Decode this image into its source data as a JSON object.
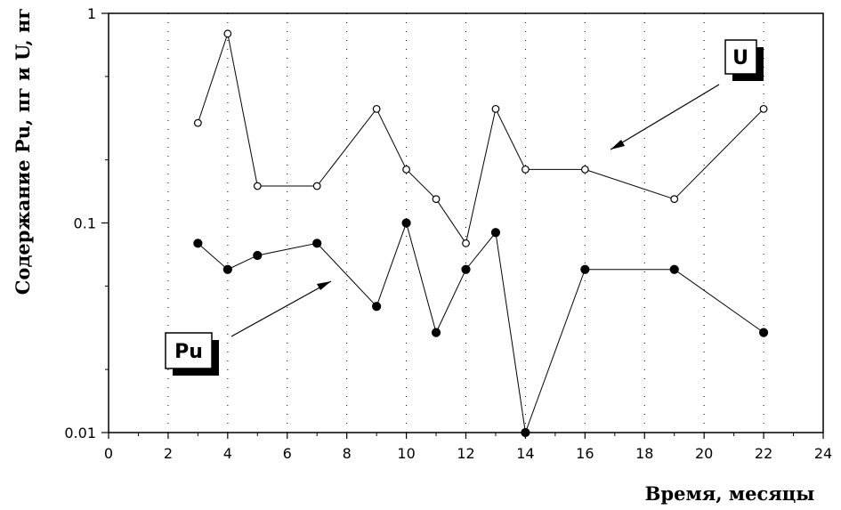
{
  "chart_data": {
    "type": "scatter",
    "title": "",
    "xlabel": "Время,  месяцы",
    "ylabel": "Содержание Pu, пг и U, нг",
    "xlim": [
      0,
      24
    ],
    "ylim": [
      0.01,
      1
    ],
    "yscale": "log",
    "x_ticks": [
      "0",
      "2",
      "4",
      "6",
      "8",
      "10",
      "12",
      "14",
      "16",
      "18",
      "20",
      "22",
      "24"
    ],
    "y_ticks": [
      "1",
      "0.1",
      "0.01"
    ],
    "grid": "dotted vertical lines at even x",
    "series": [
      {
        "name": "U",
        "marker": "open-circle",
        "x": [
          3,
          4,
          5,
          7,
          9,
          10,
          11,
          12,
          13,
          14,
          16,
          19,
          22
        ],
        "y": [
          0.3,
          0.8,
          0.15,
          0.15,
          0.35,
          0.18,
          0.13,
          0.08,
          0.35,
          0.18,
          0.18,
          0.13,
          0.35
        ]
      },
      {
        "name": "Pu",
        "marker": "filled-circle",
        "x": [
          3,
          4,
          5,
          7,
          9,
          10,
          11,
          12,
          13,
          14,
          16,
          19,
          22
        ],
        "y": [
          0.08,
          0.06,
          0.07,
          0.08,
          0.04,
          0.1,
          0.03,
          0.06,
          0.09,
          0.01,
          0.06,
          0.06,
          0.03
        ]
      }
    ],
    "annotations": [
      {
        "text": "U",
        "points_to_series": "U"
      },
      {
        "text": "Pu",
        "points_to_series": "Pu"
      }
    ]
  }
}
